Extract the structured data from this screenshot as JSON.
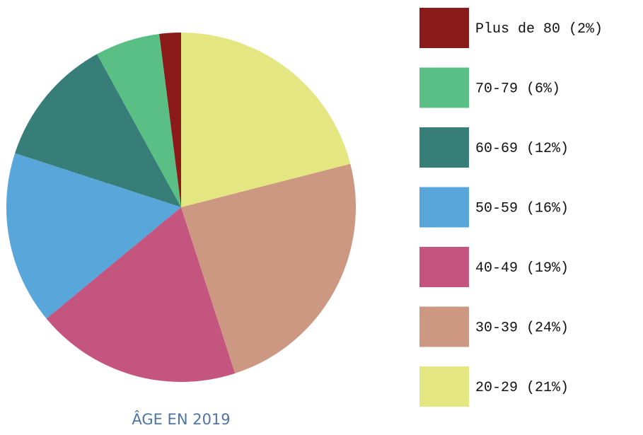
{
  "chart_data": {
    "type": "pie",
    "title": "ÂGE EN 2019",
    "categories": [
      "Plus de 80",
      "70-79",
      "60-69",
      "50-59",
      "40-49",
      "30-39",
      "20-29"
    ],
    "values": [
      2,
      6,
      12,
      16,
      19,
      24,
      21
    ],
    "value_labels": [
      "(2%)",
      "(6%)",
      "(12%)",
      "(16%)",
      "(19%)",
      "(24%)",
      "(21%)"
    ],
    "colors": [
      "#8b1a1a",
      "#5abf84",
      "#367e77",
      "#58a6da",
      "#c4557f",
      "#cd9882",
      "#e4e682"
    ],
    "legend": "right"
  }
}
